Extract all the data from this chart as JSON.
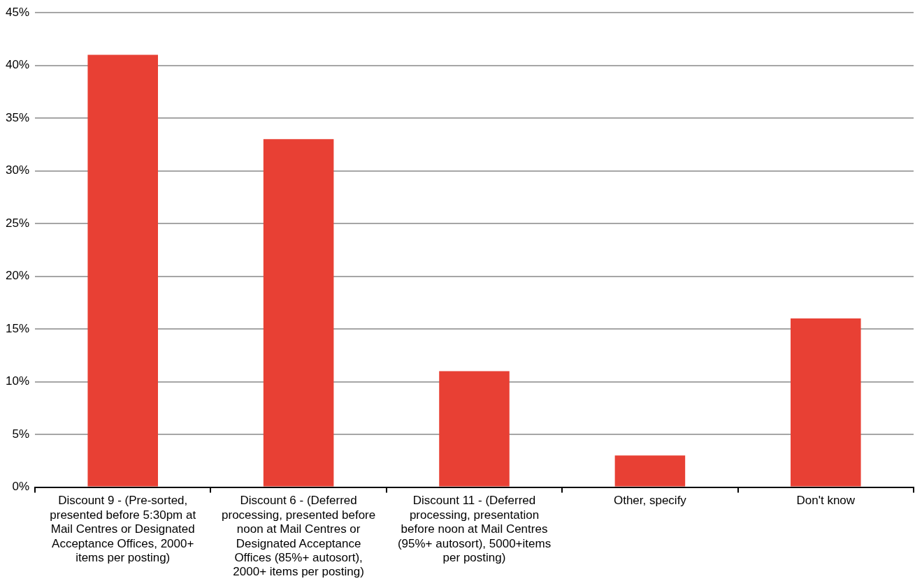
{
  "chart_data": {
    "type": "bar",
    "categories": [
      "Discount 9 - (Pre-sorted, presented before 5:30pm at Mail Centres or Designated Acceptance Offices, 2000+ items per posting)",
      "Discount 6 - (Deferred processing, presented before noon at Mail Centres or Designated Acceptance Offices (85%+ autosort), 2000+ items per posting)",
      "Discount 11 - (Deferred processing, presentation before noon at Mail Centres (95%+ autosort), 5000+items per posting)",
      "Other, specify",
      "Don't know"
    ],
    "values": [
      41,
      33,
      11,
      3,
      16
    ],
    "color": "#e84034",
    "ylim": [
      0,
      45
    ],
    "yticks": [
      {
        "value": 0,
        "label": "0%"
      },
      {
        "value": 5,
        "label": "5%"
      },
      {
        "value": 10,
        "label": "10%"
      },
      {
        "value": 15,
        "label": "15%"
      },
      {
        "value": 20,
        "label": "20%"
      },
      {
        "value": 25,
        "label": "25%"
      },
      {
        "value": 30,
        "label": "30%"
      },
      {
        "value": 35,
        "label": "35%"
      },
      {
        "value": 40,
        "label": "40%"
      },
      {
        "value": 45,
        "label": "45%"
      }
    ],
    "grid": "y",
    "legend": false
  }
}
